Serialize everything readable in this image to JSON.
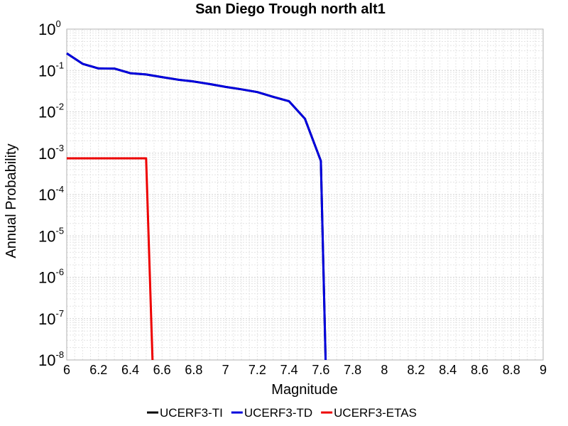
{
  "chart_data": {
    "type": "line",
    "title": "San Diego Trough north alt1",
    "xlabel": "Magnitude",
    "ylabel": "Annual Probability",
    "xlim": [
      6,
      9
    ],
    "ylim": [
      1e-08,
      1
    ],
    "yscale": "log",
    "grid": true,
    "legend_placement": "bottom",
    "x_ticks": [
      "6",
      "6.2",
      "6.4",
      "6.6",
      "6.8",
      "7",
      "7.2",
      "7.4",
      "7.6",
      "7.8",
      "8",
      "8.2",
      "8.4",
      "8.6",
      "8.8",
      "9"
    ],
    "y_ticks": [
      {
        "base": "10",
        "exp": "0"
      },
      {
        "base": "10",
        "exp": "-1"
      },
      {
        "base": "10",
        "exp": "-2"
      },
      {
        "base": "10",
        "exp": "-3"
      },
      {
        "base": "10",
        "exp": "-4"
      },
      {
        "base": "10",
        "exp": "-5"
      },
      {
        "base": "10",
        "exp": "-6"
      },
      {
        "base": "10",
        "exp": "-7"
      },
      {
        "base": "10",
        "exp": "-8"
      }
    ],
    "series": [
      {
        "name": "UCERF3-TI",
        "color": "#000000",
        "x": [
          6.0,
          6.1,
          6.2,
          6.3,
          6.4,
          6.5,
          6.6,
          6.7,
          6.8,
          6.9,
          7.0,
          7.1,
          7.2,
          7.3,
          7.4,
          7.5,
          7.6,
          7.63
        ],
        "y": [
          0.26,
          0.145,
          0.112,
          0.111,
          0.086,
          0.08,
          0.069,
          0.06,
          0.054,
          0.047,
          0.04,
          0.035,
          0.03,
          0.023,
          0.018,
          0.0068,
          0.00065,
          1e-08
        ]
      },
      {
        "name": "UCERF3-TD",
        "color": "#0000dd",
        "x": [
          6.0,
          6.1,
          6.2,
          6.3,
          6.4,
          6.5,
          6.6,
          6.7,
          6.8,
          6.9,
          7.0,
          7.1,
          7.2,
          7.3,
          7.4,
          7.5,
          7.6,
          7.63
        ],
        "y": [
          0.26,
          0.145,
          0.112,
          0.111,
          0.086,
          0.08,
          0.069,
          0.06,
          0.054,
          0.047,
          0.04,
          0.035,
          0.03,
          0.023,
          0.018,
          0.0068,
          0.00065,
          1e-08
        ]
      },
      {
        "name": "UCERF3-ETAS",
        "color": "#ee0000",
        "x": [
          6.0,
          6.5,
          6.54
        ],
        "y": [
          0.00075,
          0.00075,
          1e-08
        ]
      }
    ]
  }
}
